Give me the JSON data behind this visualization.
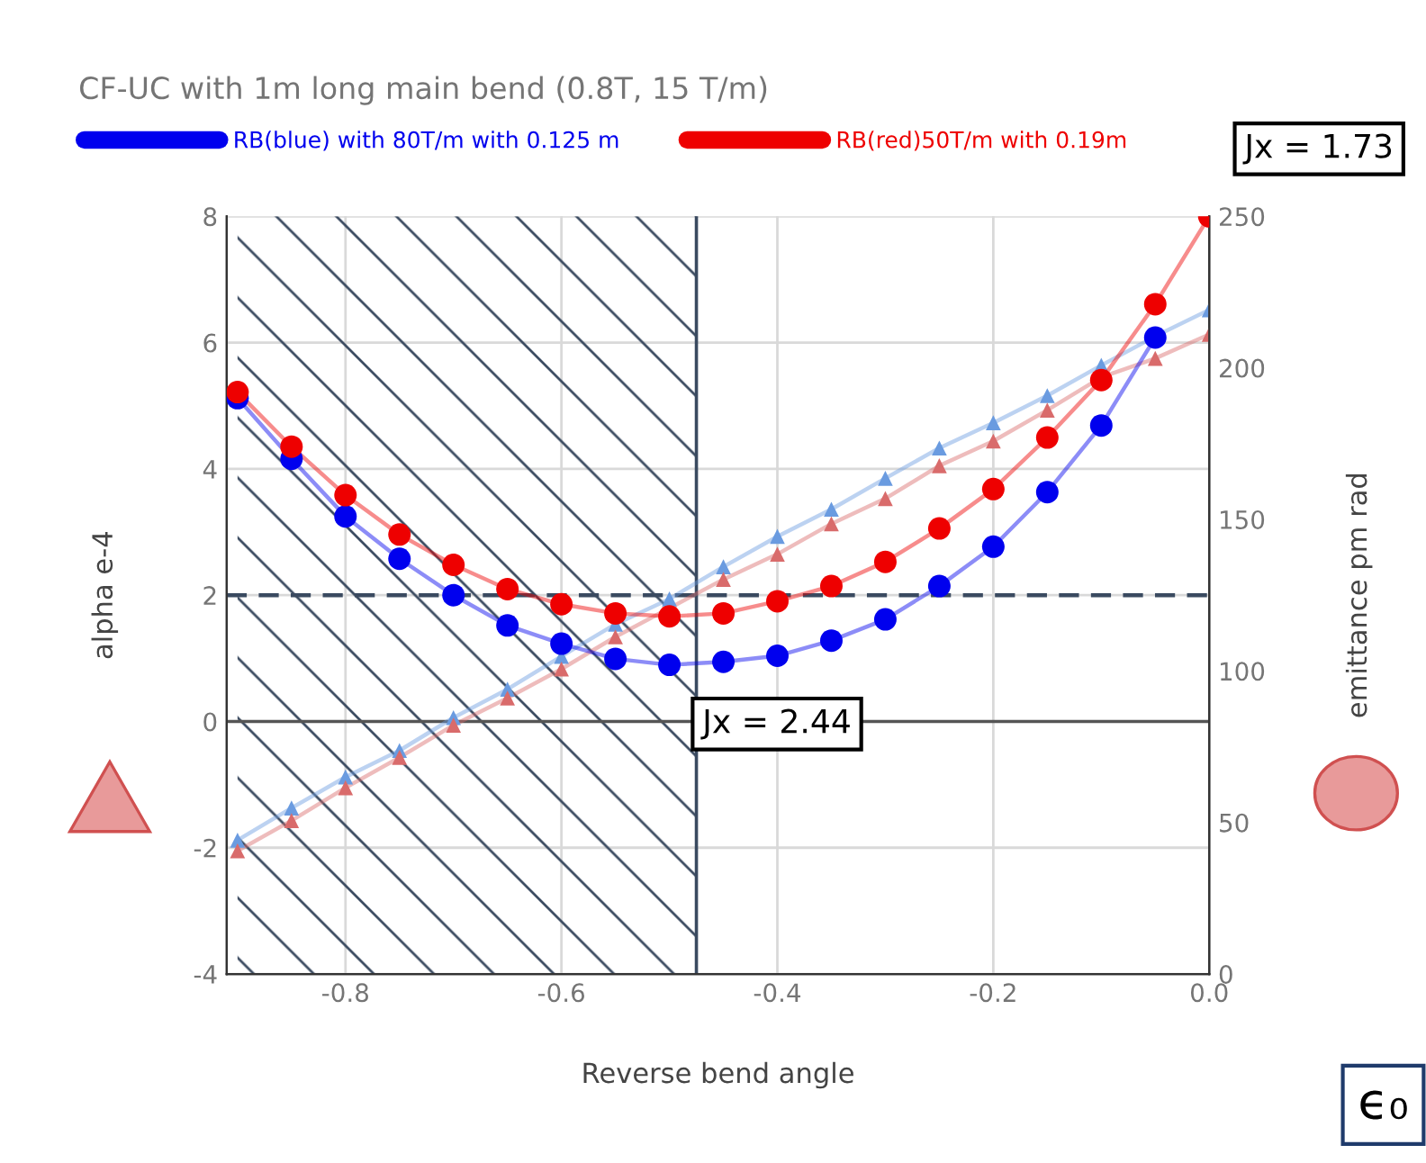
{
  "chart_data": {
    "type": "line",
    "title": "CF-UC with 1m long main bend (0.8T, 15 T/m)",
    "xlabel": "Reverse bend angle",
    "ylabel": "alpha e-4",
    "y2label": "emittance pm rad",
    "x": [
      -0.9,
      -0.85,
      -0.8,
      -0.75,
      -0.7,
      -0.65,
      -0.6,
      -0.55,
      -0.5,
      -0.45,
      -0.4,
      -0.35,
      -0.3,
      -0.25,
      -0.2,
      -0.15,
      -0.1,
      -0.05,
      0
    ],
    "series": [
      {
        "color": "#6a9be0",
        "marker": "triangle",
        "values": [
          -1.88,
          -1.37,
          -0.88,
          -0.46,
          0.06,
          0.51,
          1.03,
          1.54,
          1.94,
          2.45,
          2.93,
          3.36,
          3.85,
          4.33,
          4.73,
          5.16,
          5.64,
          6.1,
          6.52
        ]
      },
      {
        "color": "#d96b6b",
        "marker": "triangle",
        "values": [
          -2.05,
          -1.57,
          -1.05,
          -0.57,
          -0.06,
          0.37,
          0.83,
          1.34,
          null,
          2.25,
          2.65,
          3.13,
          3.53,
          4.05,
          4.44,
          4.93,
          5.45,
          5.75,
          6.13
        ]
      },
      {
        "name": "RB(blue) with 80T/m with 0.125 m",
        "color": "#0000ee",
        "marker": "circle",
        "axis": "y2",
        "values": [
          190,
          170,
          151,
          137,
          125,
          115,
          109,
          104,
          102,
          103,
          105,
          110,
          117,
          128,
          141,
          159,
          181,
          210,
          null
        ]
      },
      {
        "name": "RB(red)50T/m with 0.19m",
        "color": "#ee0000",
        "marker": "circle",
        "axis": "y2",
        "values": [
          192,
          174,
          158,
          145,
          135,
          127,
          122,
          119,
          118,
          119,
          123,
          128,
          136,
          147,
          160,
          177,
          196,
          221,
          250
        ]
      }
    ],
    "xlim": [
      -0.91,
      0
    ],
    "xticks": [
      {
        "value": -0.8,
        "label": "-0.8"
      },
      {
        "value": -0.6,
        "label": "-0.6"
      },
      {
        "value": -0.4,
        "label": "-0.4"
      },
      {
        "value": -0.2,
        "label": "-0.2"
      },
      {
        "value": 0,
        "label": "0.0"
      }
    ],
    "ylim": [
      -4,
      8
    ],
    "yticks": [
      -4,
      -2,
      0,
      2,
      4,
      6,
      8
    ],
    "y2lim": [
      0,
      250
    ],
    "y2ticks": [
      0,
      50,
      100,
      150,
      200,
      250
    ],
    "ref_lines": [
      {
        "axis": "y",
        "value": 2,
        "color": "#3a4a60",
        "line_style": "dashed"
      },
      {
        "axis": "y",
        "value": 0,
        "color": "#555555",
        "line_style": "solid"
      },
      {
        "axis": "x",
        "value": -0.475,
        "color": "#3a4a60",
        "line_style": "solid"
      }
    ],
    "bands": [
      {
        "axis": "x",
        "from": -0.9,
        "to": -0.475,
        "color": "#3a4a60"
      }
    ],
    "annotations": [
      "Jx = 1.73",
      "Jx = 2.44",
      "ϵ₀"
    ],
    "grid": true,
    "legend": "top",
    "line_style": "solid"
  }
}
